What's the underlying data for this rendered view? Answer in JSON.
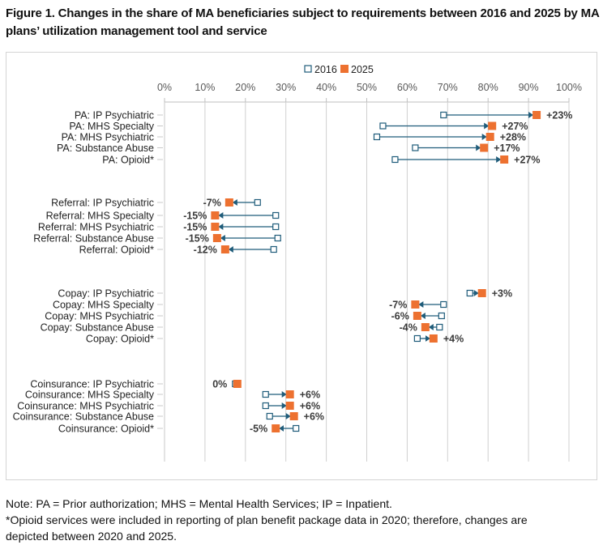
{
  "figure": {
    "title": "Figure 1. Changes in the share of MA beneficiaries subject to requirements between 2016 and 2025 by MA plans’ utilization management tool and service",
    "notes": [
      "Note: PA = Prior authorization; MHS = Mental Health Services; IP = Inpatient.",
      "*Opioid services were included in reporting of plan benefit package data in 2020; therefore, changes are",
      "depicted between 2020 and 2025."
    ]
  },
  "chart_data": {
    "type": "dumbbell",
    "title": "Figure 1. Changes in the share of MA beneficiaries subject to requirements between 2016 and 2025 by MA plans’ utilization management tool and service",
    "xlabel": "",
    "ylabel": "",
    "xlim": [
      0,
      100
    ],
    "x_ticks": [
      "0%",
      "10%",
      "20%",
      "30%",
      "40%",
      "50%",
      "60%",
      "70%",
      "80%",
      "90%",
      "100%"
    ],
    "grid": true,
    "legend": {
      "position": "top-center",
      "entries": [
        {
          "name": "2016",
          "marker": "hollow-square",
          "color": "#1f5c7a"
        },
        {
          "name": "2025",
          "marker": "filled-square",
          "color": "#ed7130"
        }
      ]
    },
    "colors": {
      "start": "#1f5c7a",
      "end": "#ed7130",
      "arrow": "#1f5c7a",
      "label": "#3a3a3a",
      "grid": "#d0d0d0"
    },
    "groups": [
      {
        "name": "PA",
        "rows": [
          {
            "label": "PA: IP Psychiatric",
            "v2016": 69,
            "v2025": 92,
            "change": "+23%"
          },
          {
            "label": "PA: MHS Specialty",
            "v2016": 54,
            "v2025": 81,
            "change": "+27%"
          },
          {
            "label": "PA: MHS Psychiatric",
            "v2016": 52.5,
            "v2025": 80.5,
            "change": "+28%"
          },
          {
            "label": "PA: Substance Abuse",
            "v2016": 62,
            "v2025": 79,
            "change": "+17%"
          },
          {
            "label": "PA: Opioid*",
            "v2016": 57,
            "v2025": 84,
            "change": "+27%"
          }
        ]
      },
      {
        "name": "Referral",
        "rows": [
          {
            "label": "Referral: IP Psychiatric",
            "v2016": 23,
            "v2025": 16,
            "change": "-7%"
          },
          {
            "label": "Referral: MHS Specialty",
            "v2016": 27.5,
            "v2025": 12.5,
            "change": "-15%"
          },
          {
            "label": "Referral: MHS Psychiatric",
            "v2016": 27.5,
            "v2025": 12.5,
            "change": "-15%"
          },
          {
            "label": "Referral: Substance Abuse",
            "v2016": 28,
            "v2025": 13,
            "change": "-15%"
          },
          {
            "label": "Referral: Opioid*",
            "v2016": 27,
            "v2025": 15,
            "change": "-12%"
          }
        ]
      },
      {
        "name": "Copay",
        "rows": [
          {
            "label": "Copay: IP Psychiatric",
            "v2016": 75.5,
            "v2025": 78.5,
            "change": "+3%"
          },
          {
            "label": "Copay: MHS Specialty",
            "v2016": 69,
            "v2025": 62,
            "change": "-7%"
          },
          {
            "label": "Copay: MHS Psychiatric",
            "v2016": 68.5,
            "v2025": 62.5,
            "change": "-6%"
          },
          {
            "label": "Copay: Substance Abuse",
            "v2016": 68,
            "v2025": 64.5,
            "change": "-4%"
          },
          {
            "label": "Copay: Opioid*",
            "v2016": 62.5,
            "v2025": 66.5,
            "change": "+4%"
          }
        ]
      },
      {
        "name": "Coinsurance",
        "rows": [
          {
            "label": "Coinsurance: IP Psychiatric",
            "v2016": 17.5,
            "v2025": 18,
            "change": "0%"
          },
          {
            "label": "Coinsurance: MHS Specialty",
            "v2016": 25,
            "v2025": 31,
            "change": "+6%"
          },
          {
            "label": "Coinsurance: MHS Psychiatric",
            "v2016": 25,
            "v2025": 31,
            "change": "+6%"
          },
          {
            "label": "Coinsurance: Substance Abuse",
            "v2016": 26,
            "v2025": 32,
            "change": "+6%"
          },
          {
            "label": "Coinsurance: Opioid*",
            "v2016": 32.5,
            "v2025": 27.5,
            "change": "-5%"
          }
        ]
      }
    ]
  }
}
